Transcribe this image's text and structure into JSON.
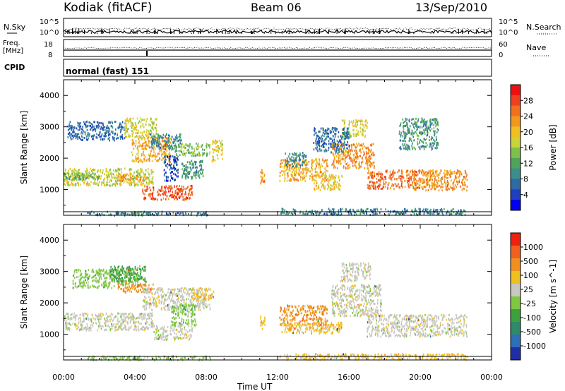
{
  "header": {
    "station": "Kodiak (fitACF)",
    "beam": "Beam 06",
    "date": "13/Sep/2010"
  },
  "top_panel": {
    "left_label": "N.Sky",
    "right_label": "N.Search",
    "left_ticks": [
      "10^5",
      "10^0"
    ],
    "right_ticks": [
      "10^5",
      "10^0"
    ]
  },
  "freq_panel": {
    "left_label_line1": "Freq.",
    "left_label_line2": "[MHz]",
    "left_ticks": [
      "18",
      "8"
    ],
    "right_label": "Nave",
    "right_ticks": [
      "60",
      "0"
    ]
  },
  "cpid": {
    "label": "CPID",
    "value": "normal (fast) 151"
  },
  "chart_data": [
    {
      "type": "heatmap",
      "title": "",
      "quantity": "Power",
      "ylabel": "Slant Range [km]",
      "xlabel": "Time UT",
      "ylim": [
        180,
        4500
      ],
      "y_ticks": [
        1000,
        2000,
        3000,
        4000
      ],
      "xlim": [
        0,
        24
      ],
      "x_ticks": [
        "00:00",
        "04:00",
        "08:00",
        "12:00",
        "16:00",
        "20:00",
        "00:00"
      ],
      "colorbar": {
        "label": "Power [dB]",
        "ticks": [
          4,
          8,
          12,
          16,
          20,
          24,
          28
        ],
        "range": [
          0,
          32
        ],
        "colors": [
          "#0000ee",
          "#1f3fbf",
          "#2e6aa6",
          "#3a8f8a",
          "#4fa35c",
          "#7fc04a",
          "#c8d43a",
          "#f0c020",
          "#f09820",
          "#f07020",
          "#f04020",
          "#ee1010"
        ]
      },
      "bands": [
        {
          "t": [
            1.3,
            5.6
          ],
          "r": [
            200,
            330
          ],
          "value": 8
        },
        {
          "t": [
            5.7,
            8.2
          ],
          "r": [
            200,
            300
          ],
          "value": 6
        },
        {
          "t": [
            12.1,
            22.6
          ],
          "r": [
            220,
            420
          ],
          "value": 8
        },
        {
          "t": [
            0.0,
            5.0
          ],
          "r": [
            1150,
            1700
          ],
          "value": 18
        },
        {
          "t": [
            0.0,
            2.0
          ],
          "r": [
            1350,
            1550
          ],
          "value": 12
        },
        {
          "t": [
            3.0,
            4.6
          ],
          "r": [
            1300,
            1500
          ],
          "value": 24
        },
        {
          "t": [
            0.2,
            3.4
          ],
          "r": [
            2600,
            3200
          ],
          "value": 6
        },
        {
          "t": [
            3.4,
            5.2
          ],
          "r": [
            2700,
            3300
          ],
          "value": 18
        },
        {
          "t": [
            3.8,
            6.0
          ],
          "r": [
            1900,
            2700
          ],
          "value": 22
        },
        {
          "t": [
            4.8,
            6.6
          ],
          "r": [
            2300,
            2800
          ],
          "value": 8
        },
        {
          "t": [
            4.4,
            7.2
          ],
          "r": [
            700,
            1150
          ],
          "value": 28
        },
        {
          "t": [
            5.6,
            6.4
          ],
          "r": [
            1300,
            2100
          ],
          "value": 4
        },
        {
          "t": [
            6.2,
            8.2
          ],
          "r": [
            2100,
            2500
          ],
          "value": 14
        },
        {
          "t": [
            6.6,
            7.8
          ],
          "r": [
            1350,
            1950
          ],
          "value": 10
        },
        {
          "t": [
            8.3,
            8.9
          ],
          "r": [
            1900,
            2600
          ],
          "value": 18
        },
        {
          "t": [
            11.0,
            11.3
          ],
          "r": [
            1200,
            1700
          ],
          "value": 24
        },
        {
          "t": [
            12.1,
            14.8
          ],
          "r": [
            1300,
            2000
          ],
          "value": 22
        },
        {
          "t": [
            12.4,
            13.6
          ],
          "r": [
            1750,
            2200
          ],
          "value": 8
        },
        {
          "t": [
            14.0,
            15.6
          ],
          "r": [
            1000,
            1500
          ],
          "value": 20
        },
        {
          "t": [
            15.0,
            17.4
          ],
          "r": [
            1700,
            2500
          ],
          "value": 24
        },
        {
          "t": [
            15.6,
            17.0
          ],
          "r": [
            2700,
            3250
          ],
          "value": 18
        },
        {
          "t": [
            17.0,
            19.8
          ],
          "r": [
            1050,
            1650
          ],
          "value": 26
        },
        {
          "t": [
            19.5,
            22.6
          ],
          "r": [
            1000,
            1650
          ],
          "value": 24
        },
        {
          "t": [
            18.8,
            21.0
          ],
          "r": [
            2300,
            3300
          ],
          "value": 10
        },
        {
          "t": [
            14.0,
            16.0
          ],
          "r": [
            2200,
            3000
          ],
          "value": 6
        }
      ]
    },
    {
      "type": "heatmap",
      "title": "",
      "quantity": "Velocity",
      "ylabel": "Slant Range [km]",
      "xlabel": "Time UT",
      "ylim": [
        180,
        4500
      ],
      "y_ticks": [
        1000,
        2000,
        3000,
        4000
      ],
      "xlim": [
        0,
        24
      ],
      "x_ticks": [
        "00:00",
        "04:00",
        "08:00",
        "12:00",
        "16:00",
        "20:00",
        "00:00"
      ],
      "colorbar": {
        "label": "Velocity [m s^-1]",
        "ticks": [
          "1000",
          "500",
          "100",
          "25",
          "-25",
          "-100",
          "-500",
          "-1000"
        ],
        "colors": [
          "#1f2fa8",
          "#2f6fb8",
          "#2f8a6a",
          "#3fa040",
          "#7fc840",
          "#c8c8c0",
          "#f0c020",
          "#f09020",
          "#f06020",
          "#ee2010"
        ]
      },
      "bands": [
        {
          "t": [
            0.0,
            5.0
          ],
          "r": [
            1150,
            1700
          ],
          "class": 5
        },
        {
          "t": [
            0.5,
            4.2
          ],
          "r": [
            2500,
            3100
          ],
          "class": 4
        },
        {
          "t": [
            2.6,
            4.6
          ],
          "r": [
            2700,
            3200
          ],
          "class": 3
        },
        {
          "t": [
            3.0,
            5.0
          ],
          "r": [
            2350,
            2650
          ],
          "class": 7
        },
        {
          "t": [
            4.4,
            8.2
          ],
          "r": [
            1800,
            2500
          ],
          "class": 5
        },
        {
          "t": [
            5.0,
            7.2
          ],
          "r": [
            850,
            1300
          ],
          "class": 5
        },
        {
          "t": [
            6.0,
            7.4
          ],
          "r": [
            1300,
            2000
          ],
          "class": 4
        },
        {
          "t": [
            7.2,
            8.4
          ],
          "r": [
            2100,
            2500
          ],
          "class": 6
        },
        {
          "t": [
            1.3,
            8.2
          ],
          "r": [
            200,
            330
          ],
          "class": 4
        },
        {
          "t": [
            12.1,
            22.6
          ],
          "r": [
            220,
            400
          ],
          "class": 6
        },
        {
          "t": [
            12.1,
            14.8
          ],
          "r": [
            1300,
            1950
          ],
          "class": 7
        },
        {
          "t": [
            12.2,
            15.6
          ],
          "r": [
            1050,
            1400
          ],
          "class": 6
        },
        {
          "t": [
            15.0,
            17.8
          ],
          "r": [
            1600,
            2600
          ],
          "class": 5
        },
        {
          "t": [
            15.5,
            17.2
          ],
          "r": [
            2700,
            3300
          ],
          "class": 5
        },
        {
          "t": [
            17.0,
            22.6
          ],
          "r": [
            950,
            1650
          ],
          "class": 5
        },
        {
          "t": [
            11.0,
            11.3
          ],
          "r": [
            1200,
            1600
          ],
          "class": 6
        }
      ]
    }
  ]
}
